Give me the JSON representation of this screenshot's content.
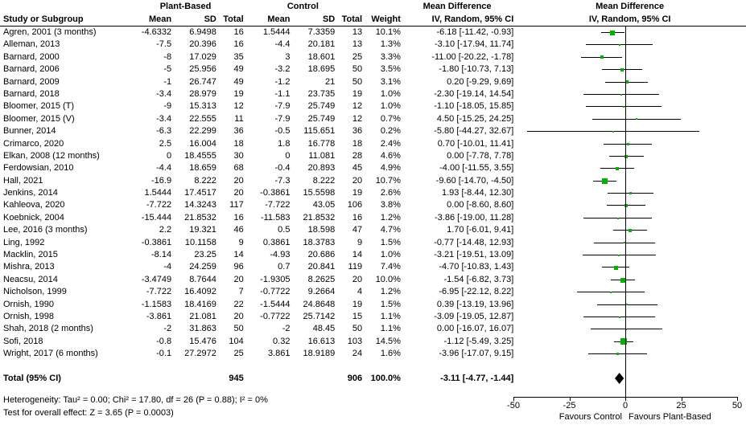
{
  "chart_data": {
    "type": "forest",
    "effect_label": "Mean Difference",
    "ci_label": "IV, Random, 95% CI",
    "groups": [
      "Plant-Based",
      "Control"
    ],
    "columns": {
      "study": "Study or Subgroup",
      "mean": "Mean",
      "sd": "SD",
      "total": "Total",
      "weight": "Weight"
    },
    "colors": {
      "marker": "#00b300",
      "diamond": "#000000",
      "line": "#000000"
    },
    "axis": {
      "range": [
        -50,
        50
      ],
      "ticks": [
        -50,
        -25,
        0,
        25,
        50
      ],
      "label_left": "Favours Control",
      "label_right": "Favours Plant-Based"
    },
    "rows": [
      {
        "study": "Agren, 2001 (3 months)",
        "pb_mean": "-4.6332",
        "pb_sd": "6.9498",
        "pb_total": "16",
        "c_mean": "1.5444",
        "c_sd": "7.3359",
        "c_total": "13",
        "weight": "10.1%",
        "md_text": "-6.18 [-11.42, -0.93]",
        "md": -6.18,
        "lo": -11.42,
        "hi": -0.93
      },
      {
        "study": "Alleman, 2013",
        "pb_mean": "-7.5",
        "pb_sd": "20.396",
        "pb_total": "16",
        "c_mean": "-4.4",
        "c_sd": "20.181",
        "c_total": "13",
        "weight": "1.3%",
        "md_text": "-3.10 [-17.94, 11.74]",
        "md": -3.1,
        "lo": -17.94,
        "hi": 11.74
      },
      {
        "study": "Barnard, 2000",
        "pb_mean": "-8",
        "pb_sd": "17.029",
        "pb_total": "35",
        "c_mean": "3",
        "c_sd": "18.601",
        "c_total": "25",
        "weight": "3.3%",
        "md_text": "-11.00 [-20.22, -1.78]",
        "md": -11.0,
        "lo": -20.22,
        "hi": -1.78
      },
      {
        "study": "Barnard, 2006",
        "pb_mean": "-5",
        "pb_sd": "25.956",
        "pb_total": "49",
        "c_mean": "-3.2",
        "c_sd": "18.695",
        "c_total": "50",
        "weight": "3.5%",
        "md_text": "-1.80 [-10.73, 7.13]",
        "md": -1.8,
        "lo": -10.73,
        "hi": 7.13
      },
      {
        "study": "Barnard, 2009",
        "pb_mean": "-1",
        "pb_sd": "26.747",
        "pb_total": "49",
        "c_mean": "-1.2",
        "c_sd": "21",
        "c_total": "50",
        "weight": "3.1%",
        "md_text": "0.20 [-9.29, 9.69]",
        "md": 0.2,
        "lo": -9.29,
        "hi": 9.69
      },
      {
        "study": "Barnard, 2018",
        "pb_mean": "-3.4",
        "pb_sd": "28.979",
        "pb_total": "19",
        "c_mean": "-1.1",
        "c_sd": "23.735",
        "c_total": "19",
        "weight": "1.0%",
        "md_text": "-2.30 [-19.14, 14.54]",
        "md": -2.3,
        "lo": -19.14,
        "hi": 14.54
      },
      {
        "study": "Bloomer, 2015 (T)",
        "pb_mean": "-9",
        "pb_sd": "15.313",
        "pb_total": "12",
        "c_mean": "-7.9",
        "c_sd": "25.749",
        "c_total": "12",
        "weight": "1.0%",
        "md_text": "-1.10 [-18.05, 15.85]",
        "md": -1.1,
        "lo": -18.05,
        "hi": 15.85
      },
      {
        "study": "Bloomer, 2015 (V)",
        "pb_mean": "-3.4",
        "pb_sd": "22.555",
        "pb_total": "11",
        "c_mean": "-7.9",
        "c_sd": "25.749",
        "c_total": "12",
        "weight": "0.7%",
        "md_text": "4.50 [-15.25, 24.25]",
        "md": 4.5,
        "lo": -15.25,
        "hi": 24.25
      },
      {
        "study": "Bunner, 2014",
        "pb_mean": "-6.3",
        "pb_sd": "22.299",
        "pb_total": "36",
        "c_mean": "-0.5",
        "c_sd": "115.651",
        "c_total": "36",
        "weight": "0.2%",
        "md_text": "-5.80 [-44.27, 32.67]",
        "md": -5.8,
        "lo": -44.27,
        "hi": 32.67
      },
      {
        "study": "Crimarco, 2020",
        "pb_mean": "2.5",
        "pb_sd": "16.004",
        "pb_total": "18",
        "c_mean": "1.8",
        "c_sd": "16.778",
        "c_total": "18",
        "weight": "2.4%",
        "md_text": "0.70 [-10.01, 11.41]",
        "md": 0.7,
        "lo": -10.01,
        "hi": 11.41
      },
      {
        "study": "Elkan, 2008 (12 months)",
        "pb_mean": "0",
        "pb_sd": "18.4555",
        "pb_total": "30",
        "c_mean": "0",
        "c_sd": "11.081",
        "c_total": "28",
        "weight": "4.6%",
        "md_text": "0.00 [-7.78, 7.78]",
        "md": 0.0,
        "lo": -7.78,
        "hi": 7.78
      },
      {
        "study": "Ferdowsian, 2010",
        "pb_mean": "-4.4",
        "pb_sd": "18.659",
        "pb_total": "68",
        "c_mean": "-0.4",
        "c_sd": "20.893",
        "c_total": "45",
        "weight": "4.9%",
        "md_text": "-4.00 [-11.55, 3.55]",
        "md": -4.0,
        "lo": -11.55,
        "hi": 3.55
      },
      {
        "study": "Hall, 2021",
        "pb_mean": "-16.9",
        "pb_sd": "8.222",
        "pb_total": "20",
        "c_mean": "-7.3",
        "c_sd": "8.222",
        "c_total": "20",
        "weight": "10.7%",
        "md_text": "-9.60 [-14.70, -4.50]",
        "md": -9.6,
        "lo": -14.7,
        "hi": -4.5
      },
      {
        "study": "Jenkins, 2014",
        "pb_mean": "1.5444",
        "pb_sd": "17.4517",
        "pb_total": "20",
        "c_mean": "-0.3861",
        "c_sd": "15.5598",
        "c_total": "19",
        "weight": "2.6%",
        "md_text": "1.93 [-8.44, 12.30]",
        "md": 1.93,
        "lo": -8.44,
        "hi": 12.3
      },
      {
        "study": "Kahleova, 2020",
        "pb_mean": "-7.722",
        "pb_sd": "14.3243",
        "pb_total": "117",
        "c_mean": "-7.722",
        "c_sd": "43.05",
        "c_total": "106",
        "weight": "3.8%",
        "md_text": "0.00 [-8.60, 8.60]",
        "md": 0.0,
        "lo": -8.6,
        "hi": 8.6
      },
      {
        "study": "Koebnick, 2004",
        "pb_mean": "-15.444",
        "pb_sd": "21.8532",
        "pb_total": "16",
        "c_mean": "-11.583",
        "c_sd": "21.8532",
        "c_total": "16",
        "weight": "1.2%",
        "md_text": "-3.86 [-19.00, 11.28]",
        "md": -3.86,
        "lo": -19.0,
        "hi": 11.28
      },
      {
        "study": "Lee, 2016 (3 months)",
        "pb_mean": "2.2",
        "pb_sd": "19.321",
        "pb_total": "46",
        "c_mean": "0.5",
        "c_sd": "18.598",
        "c_total": "47",
        "weight": "4.7%",
        "md_text": "1.70 [-6.01, 9.41]",
        "md": 1.7,
        "lo": -6.01,
        "hi": 9.41
      },
      {
        "study": "Ling, 1992",
        "pb_mean": "-0.3861",
        "pb_sd": "10.1158",
        "pb_total": "9",
        "c_mean": "0.3861",
        "c_sd": "18.3783",
        "c_total": "9",
        "weight": "1.5%",
        "md_text": "-0.77 [-14.48, 12.93]",
        "md": -0.77,
        "lo": -14.48,
        "hi": 12.93
      },
      {
        "study": "Macklin, 2015",
        "pb_mean": "-8.14",
        "pb_sd": "23.25",
        "pb_total": "14",
        "c_mean": "-4.93",
        "c_sd": "20.686",
        "c_total": "14",
        "weight": "1.0%",
        "md_text": "-3.21 [-19.51, 13.09]",
        "md": -3.21,
        "lo": -19.51,
        "hi": 13.09
      },
      {
        "study": "Mishra, 2013",
        "pb_mean": "-4",
        "pb_sd": "24.259",
        "pb_total": "96",
        "c_mean": "0.7",
        "c_sd": "20.841",
        "c_total": "119",
        "weight": "7.4%",
        "md_text": "-4.70 [-10.83, 1.43]",
        "md": -4.7,
        "lo": -10.83,
        "hi": 1.43
      },
      {
        "study": "Neacsu, 2014",
        "pb_mean": "-3.4749",
        "pb_sd": "8.7644",
        "pb_total": "20",
        "c_mean": "-1.9305",
        "c_sd": "8.2625",
        "c_total": "20",
        "weight": "10.0%",
        "md_text": "-1.54 [-6.82, 3.73]",
        "md": -1.54,
        "lo": -6.82,
        "hi": 3.73
      },
      {
        "study": "Nicholson, 1999",
        "pb_mean": "-7.722",
        "pb_sd": "16.4092",
        "pb_total": "7",
        "c_mean": "-0.7722",
        "c_sd": "9.2664",
        "c_total": "4",
        "weight": "1.2%",
        "md_text": "-6.95 [-22.12, 8.22]",
        "md": -6.95,
        "lo": -22.12,
        "hi": 8.22
      },
      {
        "study": "Ornish, 1990",
        "pb_mean": "-1.1583",
        "pb_sd": "18.4169",
        "pb_total": "22",
        "c_mean": "-1.5444",
        "c_sd": "24.8648",
        "c_total": "19",
        "weight": "1.5%",
        "md_text": "0.39 [-13.19, 13.96]",
        "md": 0.39,
        "lo": -13.19,
        "hi": 13.96
      },
      {
        "study": "Ornish, 1998",
        "pb_mean": "-3.861",
        "pb_sd": "21.081",
        "pb_total": "20",
        "c_mean": "-0.7722",
        "c_sd": "25.7142",
        "c_total": "15",
        "weight": "1.1%",
        "md_text": "-3.09 [-19.05, 12.87]",
        "md": -3.09,
        "lo": -19.05,
        "hi": 12.87
      },
      {
        "study": "Shah, 2018 (2 months)",
        "pb_mean": "-2",
        "pb_sd": "31.863",
        "pb_total": "50",
        "c_mean": "-2",
        "c_sd": "48.45",
        "c_total": "50",
        "weight": "1.1%",
        "md_text": "0.00 [-16.07, 16.07]",
        "md": 0.0,
        "lo": -16.07,
        "hi": 16.07
      },
      {
        "study": "Sofi, 2018",
        "pb_mean": "-0.8",
        "pb_sd": "15.476",
        "pb_total": "104",
        "c_mean": "0.32",
        "c_sd": "16.613",
        "c_total": "103",
        "weight": "14.5%",
        "md_text": "-1.12 [-5.49, 3.25]",
        "md": -1.12,
        "lo": -5.49,
        "hi": 3.25
      },
      {
        "study": "Wright, 2017 (6 months)",
        "pb_mean": "-0.1",
        "pb_sd": "27.2972",
        "pb_total": "25",
        "c_mean": "3.861",
        "c_sd": "18.9189",
        "c_total": "24",
        "weight": "1.6%",
        "md_text": "-3.96 [-17.07, 9.15]",
        "md": -3.96,
        "lo": -17.07,
        "hi": 9.15
      }
    ],
    "total": {
      "label": "Total (95% CI)",
      "pb_total": "945",
      "c_total": "906",
      "weight": "100.0%",
      "md_text": "-3.11 [-4.77, -1.44]",
      "md": -3.11,
      "lo": -4.77,
      "hi": -1.44
    },
    "footnotes": [
      "Heterogeneity: Tau² = 0.00; Chi² = 17.80, df = 26 (P = 0.88); I² = 0%",
      "Test for overall effect: Z = 3.65 (P = 0.0003)"
    ]
  }
}
